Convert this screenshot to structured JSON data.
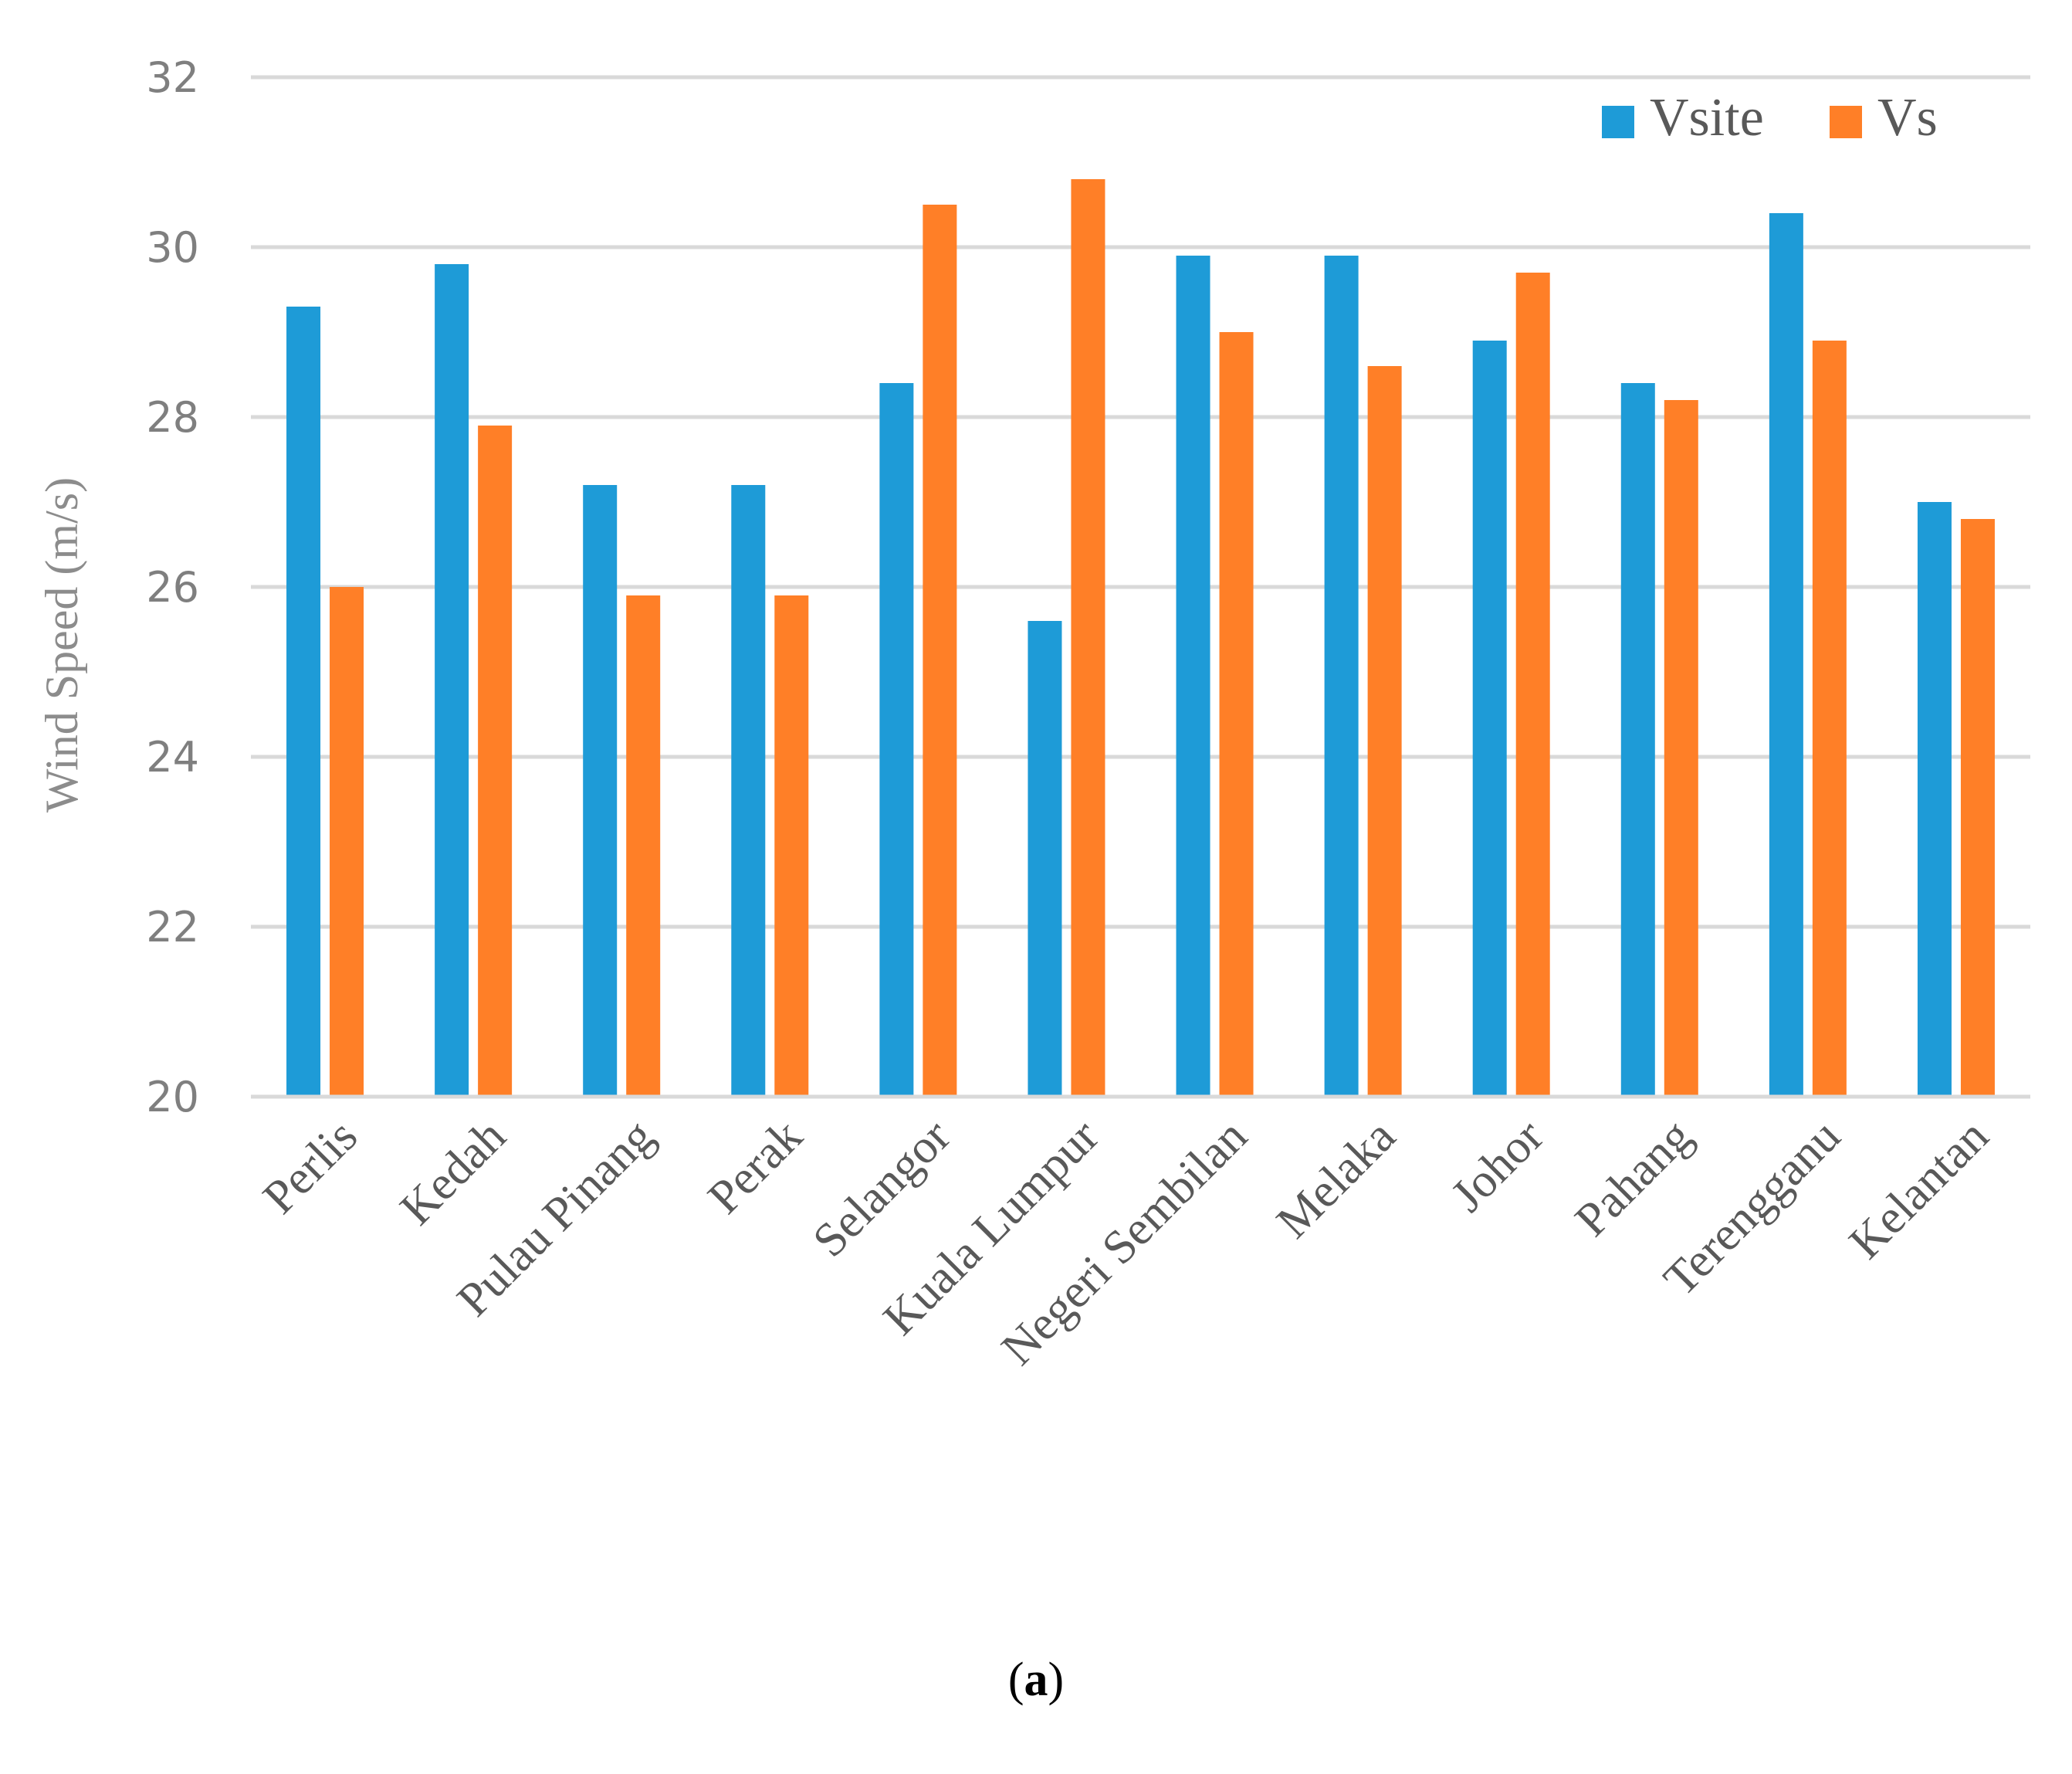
{
  "chart_data": {
    "type": "bar",
    "ylabel": "Wind Speed (m/s)",
    "ylim": [
      20,
      32
    ],
    "yticks": [
      20,
      22,
      24,
      26,
      28,
      30,
      32
    ],
    "grid": true,
    "legend_position": "top-right",
    "categories": [
      "Perlis",
      "Kedah",
      "Pulau Pinang",
      "Perak",
      "Selangor",
      "Kuala Lumpur",
      "Negeri Sembilan",
      "Melaka",
      "Johor",
      "Pahang",
      "Terengganu",
      "Kelantan"
    ],
    "series": [
      {
        "name": "Vsite",
        "color": "#1E9BD7",
        "values": [
          29.3,
          29.8,
          27.2,
          27.2,
          28.4,
          25.6,
          29.9,
          29.9,
          28.9,
          28.4,
          30.4,
          27.0
        ]
      },
      {
        "name": "Vs",
        "color": "#FF7F27",
        "values": [
          26.0,
          27.9,
          25.9,
          25.9,
          30.5,
          30.8,
          29.0,
          28.6,
          29.7,
          28.2,
          28.9,
          26.8
        ]
      }
    ]
  },
  "caption": {
    "open": "(",
    "label": "a",
    "close": ")"
  }
}
